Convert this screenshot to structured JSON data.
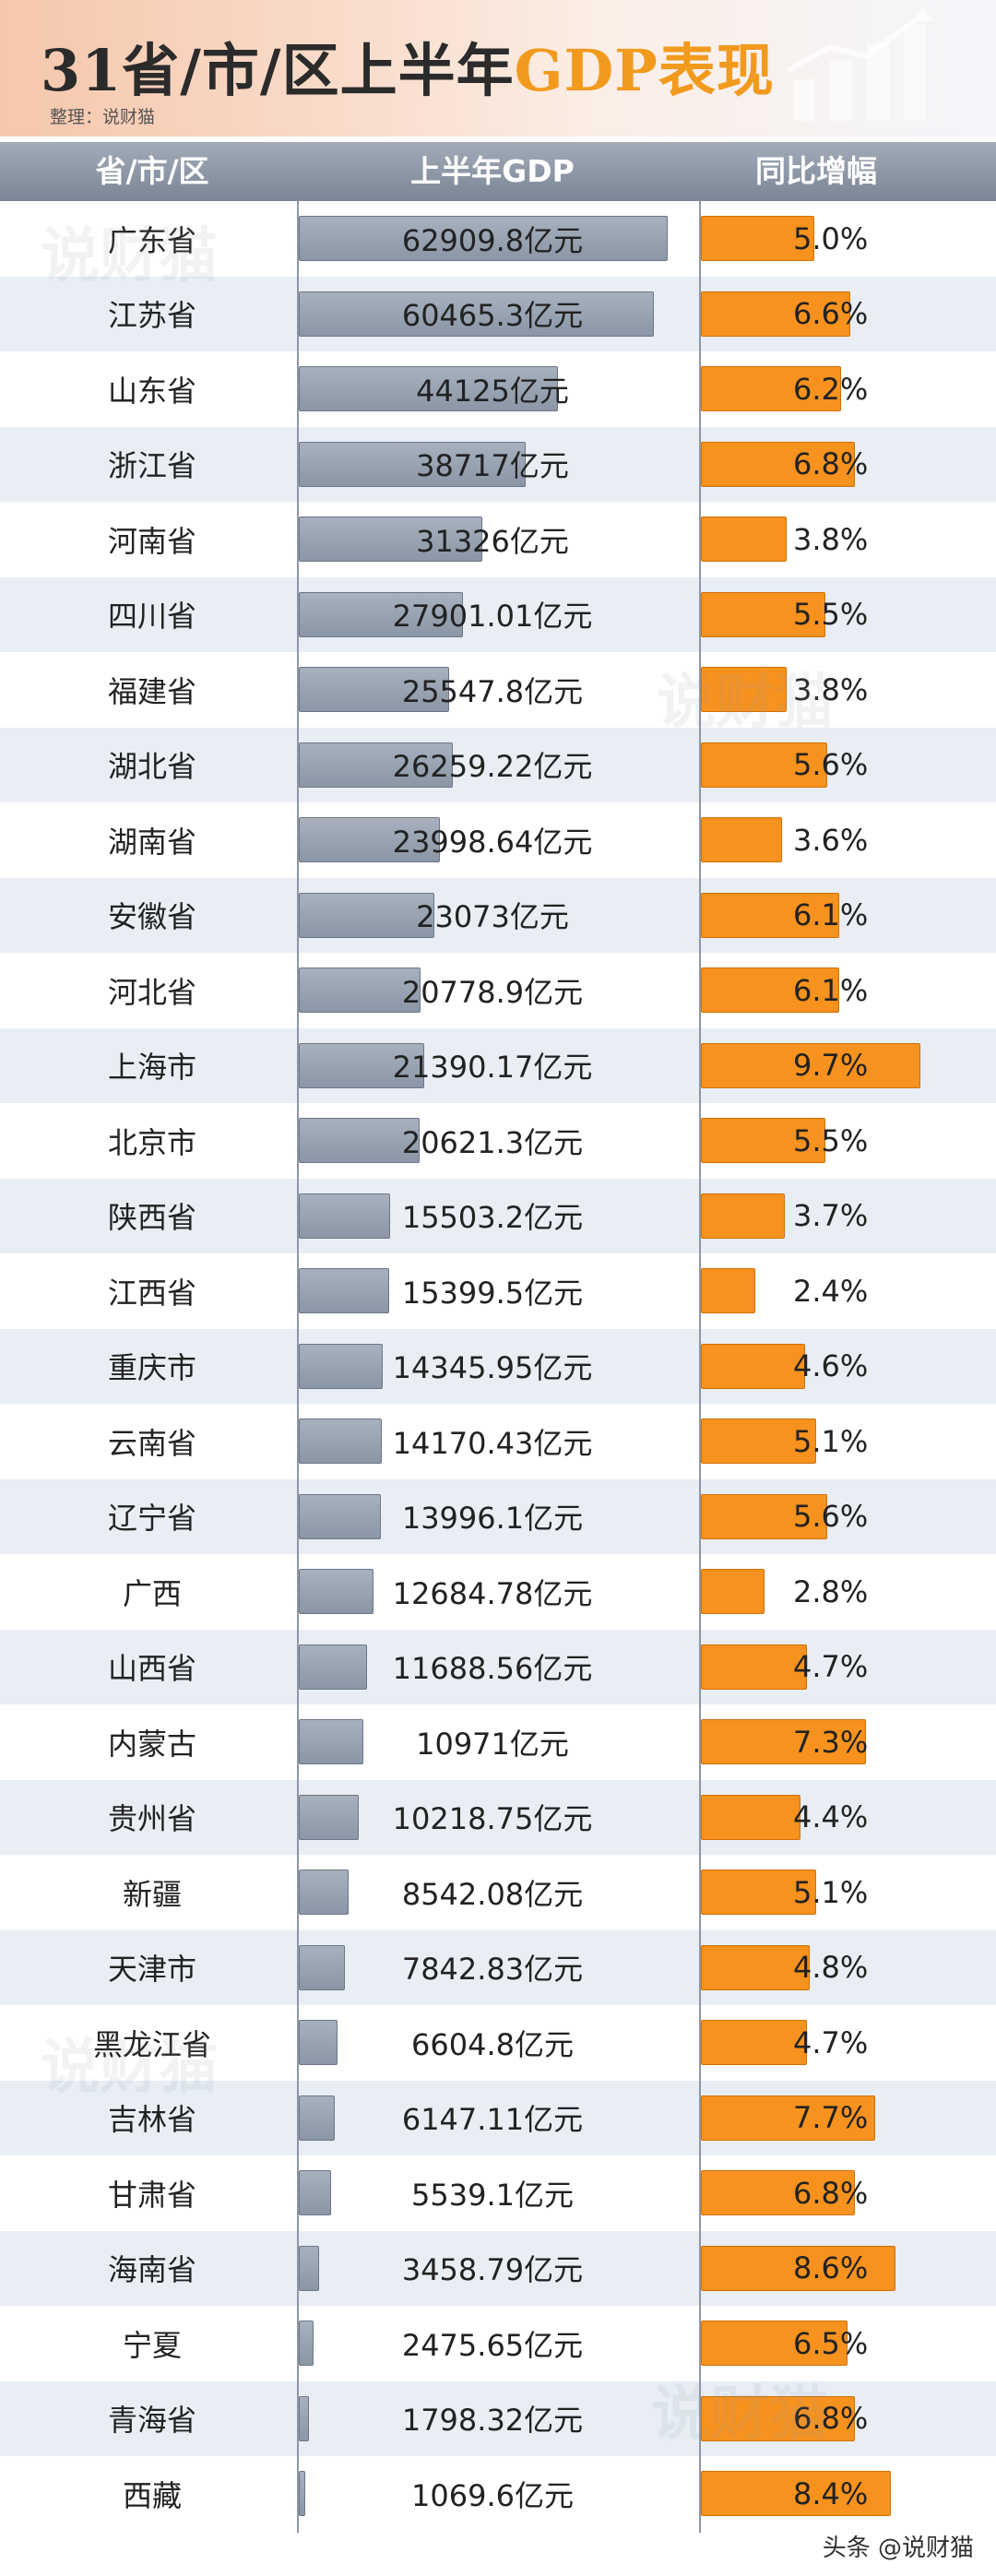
{
  "header": {
    "title_main": "31省/市/区上半年",
    "title_highlight": "GDP表现",
    "credit": "整理：说财猫"
  },
  "columns": {
    "region": "省/市/区",
    "gdp": "上半年GDP",
    "growth": "同比增幅"
  },
  "watermark": "说财猫",
  "footer": "头条 @说财猫",
  "colors": {
    "gdp_bar": "#8b96a6",
    "growth_bar": "#f7921e",
    "accent": "#f29a1d",
    "row_alt": "#e9eef5"
  },
  "chart_data": {
    "type": "bar",
    "title": "31省/市/区上半年GDP表现",
    "unit_gdp": "亿元",
    "categories": [
      "广东省",
      "江苏省",
      "山东省",
      "浙江省",
      "河南省",
      "四川省",
      "福建省",
      "湖北省",
      "湖南省",
      "安徽省",
      "河北省",
      "上海市",
      "北京市",
      "陕西省",
      "江西省",
      "重庆市",
      "云南省",
      "辽宁省",
      "广西",
      "山西省",
      "内蒙古",
      "贵州省",
      "新疆",
      "天津市",
      "黑龙江省",
      "吉林省",
      "甘肃省",
      "海南省",
      "宁夏",
      "青海省",
      "西藏"
    ],
    "series": [
      {
        "name": "上半年GDP",
        "values": [
          62909.8,
          60465.3,
          44125,
          38717,
          31326,
          27901.01,
          25547.8,
          26259.22,
          23998.64,
          23073,
          20778.9,
          21390.17,
          20621.3,
          15503.2,
          15399.5,
          14345.95,
          14170.43,
          13996.1,
          12684.78,
          11688.56,
          10971,
          10218.75,
          8542.08,
          7842.83,
          6604.8,
          6147.11,
          5539.1,
          3458.79,
          2475.65,
          1798.32,
          1069.6
        ],
        "labels": [
          "62909.8亿元",
          "60465.3亿元",
          "44125亿元",
          "38717亿元",
          "31326亿元",
          "27901.01亿元",
          "25547.8亿元",
          "26259.22亿元",
          "23998.64亿元",
          "23073亿元",
          "20778.9亿元",
          "21390.17亿元",
          "20621.3亿元",
          "15503.2亿元",
          "15399.5亿元",
          "14345.95亿元",
          "14170.43亿元",
          "13996.1亿元",
          "12684.78亿元",
          "11688.56亿元",
          "10971亿元",
          "10218.75亿元",
          "8542.08亿元",
          "7842.83亿元",
          "6604.8亿元",
          "6147.11亿元",
          "5539.1亿元",
          "3458.79亿元",
          "2475.65亿元",
          "1798.32亿元",
          "1069.6亿元"
        ]
      },
      {
        "name": "同比增幅",
        "values": [
          5.0,
          6.6,
          6.2,
          6.8,
          3.8,
          5.5,
          3.8,
          5.6,
          3.6,
          6.1,
          6.1,
          9.7,
          5.5,
          3.7,
          2.4,
          4.6,
          5.1,
          5.6,
          2.8,
          4.7,
          7.3,
          4.4,
          5.1,
          4.8,
          4.7,
          7.7,
          6.8,
          8.6,
          6.5,
          6.8,
          8.4
        ],
        "labels": [
          "5.0%",
          "6.6%",
          "6.2%",
          "6.8%",
          "3.8%",
          "5.5%",
          "3.8%",
          "5.6%",
          "3.6%",
          "6.1%",
          "6.1%",
          "9.7%",
          "5.5%",
          "3.7%",
          "2.4%",
          "4.6%",
          "5.1%",
          "5.6%",
          "2.8%",
          "4.7%",
          "7.3%",
          "4.4%",
          "5.1%",
          "4.8%",
          "4.7%",
          "7.7%",
          "6.8%",
          "8.6%",
          "6.5%",
          "6.8%",
          "8.4%"
        ]
      }
    ],
    "gdp_max": 66000,
    "growth_max": 10.2,
    "grid": false,
    "legend": "none"
  }
}
